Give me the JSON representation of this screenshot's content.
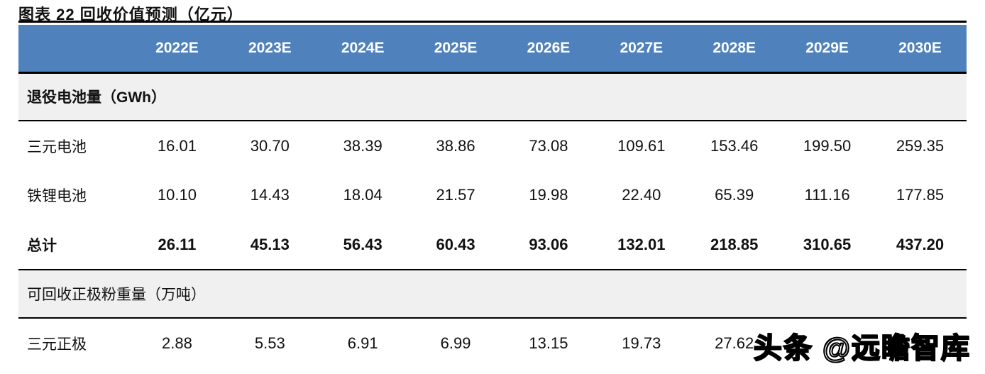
{
  "title": "图表 22  回收价值预测（亿元）",
  "watermark": "头条 @远瞻智库",
  "colors": {
    "header_bg": "#4F81BD",
    "header_text": "#FFFFFF",
    "section_bg": "#F0F0F0",
    "border": "#000000"
  },
  "table": {
    "columns": [
      "",
      "2022E",
      "2023E",
      "2024E",
      "2025E",
      "2026E",
      "2027E",
      "2028E",
      "2029E",
      "2030E"
    ],
    "sections": [
      {
        "header": "退役电池量（GWh）",
        "rows": [
          {
            "label": "三元电池",
            "values": [
              "16.01",
              "30.70",
              "38.39",
              "38.86",
              "73.08",
              "109.61",
              "153.46",
              "199.50",
              "259.35"
            ]
          },
          {
            "label": "铁锂电池",
            "values": [
              "10.10",
              "14.43",
              "18.04",
              "21.57",
              "19.98",
              "22.40",
              "65.39",
              "111.16",
              "177.85"
            ]
          },
          {
            "label": "总计",
            "values": [
              "26.11",
              "45.13",
              "56.43",
              "60.43",
              "93.06",
              "132.01",
              "218.85",
              "310.65",
              "437.20"
            ]
          }
        ]
      },
      {
        "header": "可回收正极粉重量（万吨）",
        "rows": [
          {
            "label": "三元正极",
            "values": [
              "2.88",
              "5.53",
              "6.91",
              "6.99",
              "13.15",
              "19.73",
              "27.62",
              "",
              ""
            ]
          }
        ]
      }
    ]
  }
}
